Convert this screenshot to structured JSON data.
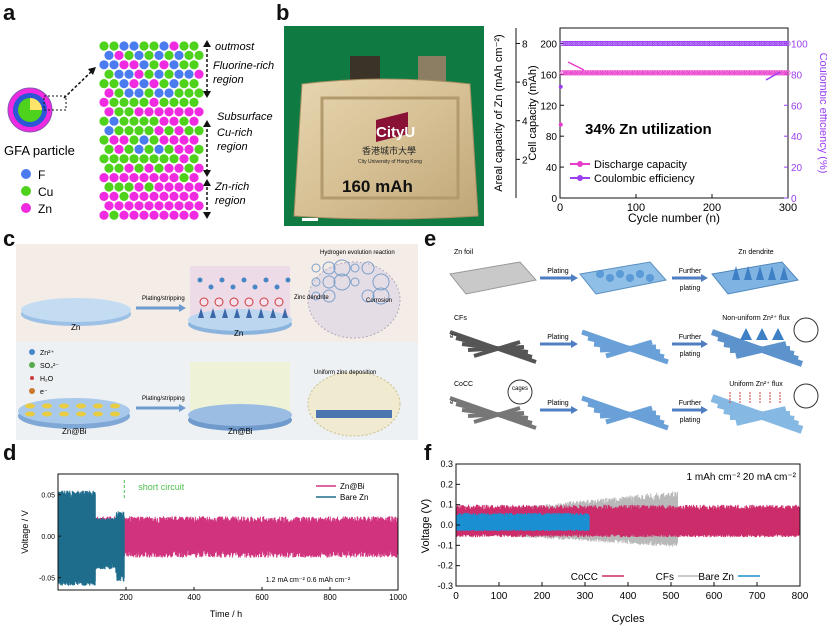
{
  "panel_labels": {
    "a": "a",
    "b": "b",
    "c": "c",
    "d": "d",
    "e": "e",
    "f": "f"
  },
  "panel_a": {
    "particle_label": "GFA particle",
    "legend": [
      {
        "symbol": "F",
        "color": "#4a7cf0"
      },
      {
        "symbol": "Cu",
        "color": "#4ed21c"
      },
      {
        "symbol": "Zn",
        "color": "#f02ae0"
      }
    ],
    "regions": {
      "outmost": "outmost",
      "fluorine_line1": "Fluorine-rich",
      "fluorine_line2": "region",
      "subsurface": "Subsurface",
      "cu_line1": "Cu-rich",
      "cu_line2": "region",
      "zn_line1": "Zn-rich",
      "zn_line2": "region"
    }
  },
  "panel_b": {
    "pouch_logo": "CityU",
    "pouch_chinese": "香港城市大學",
    "pouch_english": "City University of Hong Kong",
    "pouch_capacity": "160 mAh",
    "annotation": "34%  Zn utilization"
  },
  "panel_c": {
    "legend": [
      "Zn²⁺",
      "SO₄²⁻",
      "H₂O",
      "e⁻"
    ],
    "plating_stripping": "Plating/stripping",
    "hydrogen": "Hydrogen evolution reaction",
    "dendrite": "Zinc dendrite",
    "corrosion": "Corrosion",
    "uniform": "Uniform zinc deposition",
    "zn": "Zn",
    "znbi": "Zn@Bi"
  },
  "panel_e": {
    "rows": [
      {
        "label": "Zn foil",
        "step1": "Plating",
        "step2": "Further plating",
        "result": "Zn dendrite"
      },
      {
        "label": "CFs",
        "step1": "Plating",
        "step2": "Further plating",
        "result": "Non-uniform Zn²⁺ flux"
      },
      {
        "label": "CoCC",
        "step1": "Plating",
        "step2": "Further plating",
        "result": "Uniform Zn²⁺ flux"
      }
    ],
    "cages": "cages",
    "electron": "e⁻"
  },
  "chart_data": [
    {
      "id": "b",
      "type": "scatter",
      "xlabel": "Cycle number (n)",
      "ylabel": "Cell capacity (mAh)",
      "ylabel_outer": "Areal capacity of Zn (mAh cm⁻²)",
      "y2label": "Coulombic efficiency (%)",
      "xlim": [
        0,
        300
      ],
      "ylim": [
        0,
        220
      ],
      "y2lim": [
        0,
        110
      ],
      "x_ticks": [
        "0",
        "100",
        "200",
        "300"
      ],
      "y_ticks": [
        "0",
        "40",
        "80",
        "120",
        "160",
        "200"
      ],
      "y_outer_ticks": [
        "2",
        "4",
        "6",
        "8"
      ],
      "y2_ticks": [
        "0",
        "20",
        "40",
        "60",
        "80",
        "100"
      ],
      "legend_position": "bottom-left",
      "series": [
        {
          "name": "Discharge capacity",
          "color": "#e83ccc",
          "axis": "left",
          "x_start": 1,
          "x_end": 300,
          "first_value": 95,
          "value": 162
        },
        {
          "name": "Coulombic efficiency",
          "color": "#9a3ff0",
          "axis": "right",
          "x_start": 1,
          "x_end": 300,
          "first_value": 72,
          "value": 100
        }
      ]
    },
    {
      "id": "d",
      "type": "line",
      "xlabel": "Time / h",
      "ylabel": "Voltage / V",
      "xlim": [
        0,
        1000
      ],
      "ylim": [
        -0.065,
        0.075
      ],
      "x_ticks": [
        "200",
        "400",
        "600",
        "800",
        "1000"
      ],
      "y_ticks": [
        "-0.05",
        "0.00",
        "0.05"
      ],
      "annotation": "short circuit",
      "short_circuit_time": 195,
      "conditions": "1.2 mA cm⁻² 0.6 mAh cm⁻²",
      "legend_position": "top-right",
      "series": [
        {
          "name": "Zn@Bi",
          "color": "#d1337f",
          "x_start": 0,
          "x_end": 1000,
          "upper": 0.024,
          "lower": -0.026
        },
        {
          "name": "Bare Zn",
          "color": "#1f6d8d",
          "x_start": 0,
          "x_end": 195,
          "upper": 0.055,
          "lower": -0.06
        }
      ]
    },
    {
      "id": "f",
      "type": "line",
      "xlabel": "Cycles",
      "ylabel": "Voltage (V)",
      "xlim": [
        0,
        800
      ],
      "ylim": [
        -0.3,
        0.3
      ],
      "x_ticks": [
        "0",
        "100",
        "200",
        "300",
        "400",
        "500",
        "600",
        "700",
        "800"
      ],
      "y_ticks": [
        "-0.3",
        "-0.2",
        "-0.1",
        "0.0",
        "0.1",
        "0.2",
        "0.3"
      ],
      "conditions": "1 mAh cm⁻²  20 mA cm⁻²",
      "legend_position": "bottom-right",
      "series": [
        {
          "name": "CoCC",
          "color": "#cc2c6a",
          "x_start": 0,
          "x_end": 800,
          "upper": 0.1,
          "lower": -0.06
        },
        {
          "name": "CFs",
          "color": "#b9b9b9",
          "x_start": 0,
          "x_end": 515,
          "upper": 0.17,
          "lower": -0.11
        },
        {
          "name": "Bare Zn",
          "color": "#1a8fd1",
          "x_start": 0,
          "x_end": 310,
          "upper": 0.06,
          "lower": -0.03
        }
      ]
    }
  ]
}
